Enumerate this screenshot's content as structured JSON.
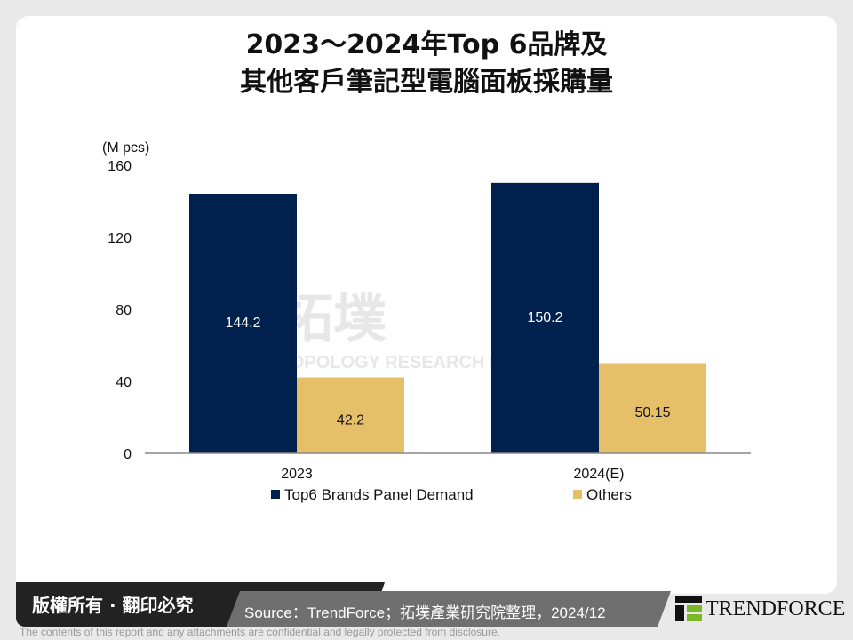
{
  "title_line1": "2023～2024年Top 6品牌及",
  "title_line2": "其他客戶筆記型電腦面板採購量",
  "chart_data": {
    "type": "bar",
    "ylabel": "(M pcs)",
    "ylim": [
      0,
      160
    ],
    "yticks": [
      "0",
      "40",
      "80",
      "120",
      "160"
    ],
    "categories": [
      "2023",
      "2024(E)"
    ],
    "series": [
      {
        "name": "Top6 Brands Panel Demand",
        "values": [
          144.2,
          150.2
        ],
        "labels": [
          "144.2",
          "150.2"
        ],
        "color": "#00204e"
      },
      {
        "name": "Others",
        "values": [
          42.2,
          50.15
        ],
        "labels": [
          "42.2",
          "50.15"
        ],
        "color": "#e6bf69"
      }
    ],
    "legend": "bottom",
    "grid": false
  },
  "watermark": {
    "cn": "拓墣",
    "en": "TOPOLOGY RESEARCH INSTITUTE",
    "logo": "TRi"
  },
  "footer": {
    "copyright": "版權所有 · 翻印必究",
    "source": "Source：TrendForce；拓墣產業研究院整理，2024/12",
    "logo": "TRENDFORCE",
    "disclaimer": "The contents of this report and any attachments are confidential and legally protected from disclosure."
  }
}
